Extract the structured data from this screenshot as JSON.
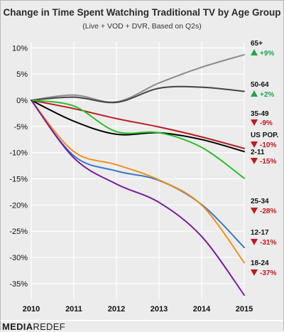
{
  "title": "Change in Time Spent Watching Traditional TV by Age Group",
  "subtitle": "(Live + VOD + DVR, Based on Q2s)",
  "brand": {
    "part1": "MEDIA",
    "part2": "REDEF"
  },
  "colors": {
    "up": "#1aa84a",
    "down": "#c8141e",
    "grid": "#ffffff",
    "background": "#ececec"
  },
  "chart_data": {
    "type": "line",
    "title": "Change in Time Spent Watching Traditional TV by Age Group",
    "subtitle": "(Live + VOD + DVR, Based on Q2s)",
    "xlabel": "",
    "ylabel": "",
    "x": [
      2010,
      2011,
      2012,
      2013,
      2014,
      2015
    ],
    "x_tick_labels": [
      "2010",
      "2011",
      "2012",
      "2013",
      "2014",
      "2015"
    ],
    "ylim": [
      -0.38,
      0.11
    ],
    "y_ticks": [
      0.1,
      0.05,
      0.0,
      -0.05,
      -0.1,
      -0.15,
      -0.2,
      -0.25,
      -0.3,
      -0.35
    ],
    "y_tick_labels": [
      "10%",
      "5%",
      "0%",
      "-5%",
      "-10%",
      "-15%",
      "-20%",
      "-25%",
      "-30%",
      "-35%"
    ],
    "grid": true,
    "legend": "direct labels at right end of each line",
    "series": [
      {
        "name": "65+",
        "change": "+9%",
        "direction": "up",
        "color": "#8c8c8c",
        "values": [
          0.0,
          0.01,
          -0.003,
          0.033,
          0.063,
          0.087
        ]
      },
      {
        "name": "50-64",
        "change": "+2%",
        "direction": "up",
        "color": "#444444",
        "values": [
          0.0,
          0.006,
          -0.004,
          0.023,
          0.025,
          0.017
        ]
      },
      {
        "name": "35-49",
        "change": "-9%",
        "direction": "down",
        "color": "#b81c1c",
        "values": [
          0.0,
          -0.016,
          -0.035,
          -0.051,
          -0.07,
          -0.092
        ]
      },
      {
        "name": "US POP.",
        "change": "-10%",
        "direction": "down",
        "color": "#000000",
        "values": [
          0.0,
          -0.04,
          -0.065,
          -0.062,
          -0.075,
          -0.098
        ]
      },
      {
        "name": "2-11",
        "change": "-15%",
        "direction": "down",
        "color": "#2cbf2c",
        "values": [
          0.0,
          -0.011,
          -0.06,
          -0.062,
          -0.09,
          -0.149
        ]
      },
      {
        "name": "25-34",
        "change": "-28%",
        "direction": "down",
        "color": "#3a78c8",
        "values": [
          0.0,
          -0.106,
          -0.135,
          -0.153,
          -0.199,
          -0.281
        ]
      },
      {
        "name": "12-17",
        "change": "-31%",
        "direction": "down",
        "color": "#f0901e",
        "values": [
          0.0,
          -0.098,
          -0.123,
          -0.152,
          -0.2,
          -0.31
        ]
      },
      {
        "name": "18-24",
        "change": "-37%",
        "direction": "down",
        "color": "#7a1aa0",
        "values": [
          0.0,
          -0.11,
          -0.16,
          -0.195,
          -0.26,
          -0.372
        ]
      }
    ]
  }
}
